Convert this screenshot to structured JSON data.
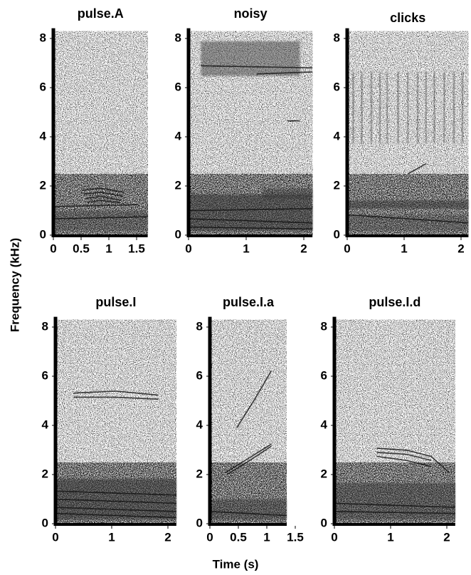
{
  "xlabel": "Time (s)",
  "ylabel": "Frequency (kHz)",
  "chart_data": [
    {
      "type": "spectrogram",
      "title": "pulse.A",
      "xlim": [
        0,
        1.7
      ],
      "ylim": [
        0,
        8.3
      ],
      "xticks": [
        0,
        0.5,
        1,
        1.5
      ],
      "yticks": [
        0,
        2,
        4,
        6,
        8
      ]
    },
    {
      "type": "spectrogram",
      "title": "noisy",
      "xlim": [
        0,
        2.15
      ],
      "ylim": [
        0,
        8.3
      ],
      "xticks": [
        0,
        1,
        2
      ],
      "yticks": [
        0,
        2,
        4,
        6,
        8
      ]
    },
    {
      "type": "spectrogram",
      "title": "clicks",
      "xlim": [
        0,
        2.13
      ],
      "ylim": [
        0,
        8.3
      ],
      "xticks": [
        0,
        1,
        2
      ],
      "yticks": [
        0,
        2,
        4,
        6,
        8
      ]
    },
    {
      "type": "spectrogram",
      "title": "pulse.I",
      "xlim": [
        0,
        2.15
      ],
      "ylim": [
        0,
        8.3
      ],
      "xticks": [
        0,
        1,
        2
      ],
      "yticks": [
        0,
        2,
        4,
        6,
        8
      ]
    },
    {
      "type": "spectrogram",
      "title": "pulse.I.a",
      "xlim": [
        0,
        1.35
      ],
      "ylim": [
        0,
        8.3
      ],
      "xticks": [
        0,
        0.5,
        1,
        1.5
      ],
      "yticks": [
        0,
        2,
        4,
        6,
        8
      ]
    },
    {
      "type": "spectrogram",
      "title": "pulse.I.d",
      "xlim": [
        0,
        2.15
      ],
      "ylim": [
        0,
        8.3
      ],
      "xticks": [
        0,
        1,
        2
      ],
      "yticks": [
        0,
        2,
        4,
        6,
        8
      ]
    }
  ]
}
